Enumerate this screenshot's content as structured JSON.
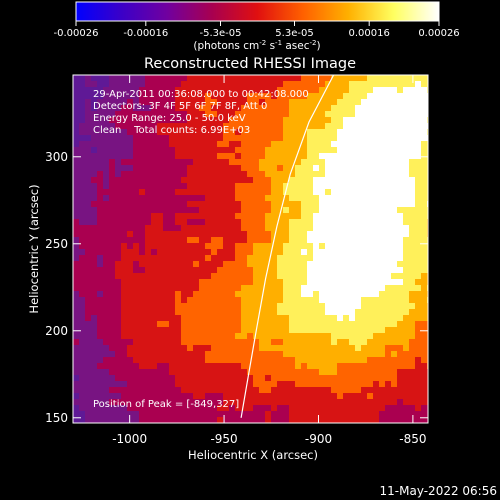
{
  "colorbar": {
    "tick_labels": [
      "-0.00026",
      "-0.00016",
      "-5.3e-05",
      "5.3e-05",
      "0.00016",
      "0.00026"
    ],
    "tick_values": [
      -0.00026,
      -0.00016,
      -5.3e-05,
      5.3e-05,
      0.00016,
      0.00026
    ],
    "units_parts": [
      "(photons cm",
      "-2",
      " s",
      "-1",
      " asec",
      "-2",
      ")"
    ],
    "range": [
      -0.00026,
      0.00026
    ],
    "stops": [
      "#0000ff",
      "#3b00c8",
      "#7000a0",
      "#a80050",
      "#e01010",
      "#ff6000",
      "#ffb000",
      "#ffff60",
      "#ffffff"
    ]
  },
  "chart_data": {
    "type": "heatmap",
    "title": "Reconstructed RHESSI Image",
    "xlabel": "Heliocentric X (arcsec)",
    "ylabel": "Heliocentric Y (arcsec)",
    "xlim": [
      -1030,
      -842
    ],
    "ylim": [
      147,
      347
    ],
    "xticks": [
      -1000,
      -950,
      -900,
      -850
    ],
    "xtick_labels": [
      "-1000",
      "-950",
      "-900",
      "-850"
    ],
    "yticks": [
      150,
      200,
      250,
      300
    ],
    "ytick_labels": [
      "150",
      "200",
      "250",
      "300"
    ],
    "limb_curve": [
      {
        "x": -892,
        "y": 347
      },
      {
        "x": -905,
        "y": 320
      },
      {
        "x": -915,
        "y": 290
      },
      {
        "x": -922,
        "y": 260
      },
      {
        "x": -928,
        "y": 230
      },
      {
        "x": -933,
        "y": 200
      },
      {
        "x": -937,
        "y": 175
      },
      {
        "x": -941,
        "y": 150
      }
    ],
    "annotations": [
      "29-Apr-2011 00:36:08.000 to 00:42:08.000",
      "Detectors: 3F 4F 5F 6F 7F 8F, Att 0",
      "Energy Range: 25.0 - 50.0 keV",
      "Clean    Total counts: 6.99E+03"
    ],
    "peak_label": "Position of Peak = [-849,327]",
    "peak": [
      -849,
      327
    ]
  },
  "footer": {
    "timestamp": "11-May-2022 06:56"
  }
}
